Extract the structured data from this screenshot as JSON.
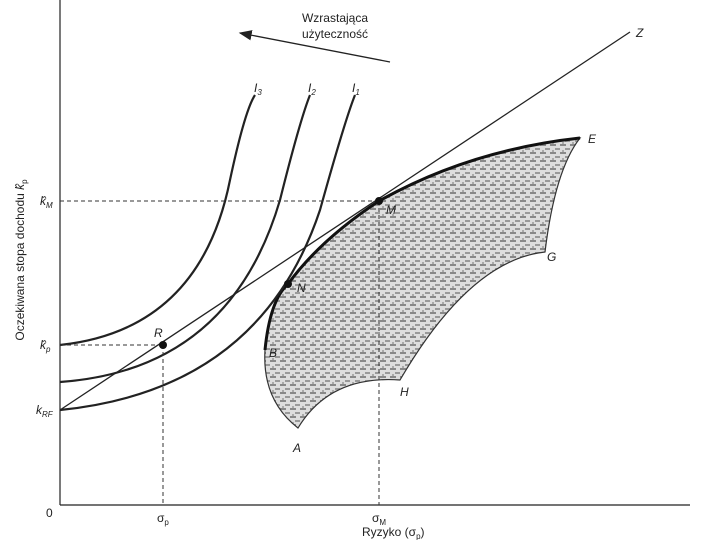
{
  "annotation": {
    "lines": [
      "Wzrastająca",
      "użyteczność"
    ]
  },
  "points": {
    "Z": "Z",
    "E": "E",
    "G": "G",
    "H": "H",
    "A": "A",
    "B": "B",
    "N": "N",
    "M": "M",
    "R": "R"
  },
  "curves": [
    {
      "main": "I",
      "sub": "3"
    },
    {
      "main": "I",
      "sub": "2"
    },
    {
      "main": "I",
      "sub": "1"
    }
  ],
  "y_axis": {
    "title": {
      "text": "Oczekiwana stopa dochodu ",
      "symbol": "k̂",
      "sub": "p"
    },
    "ticks": [
      {
        "main": "k̂",
        "sub": "M"
      },
      {
        "main": "k̂",
        "sub": "p"
      },
      {
        "main": "k",
        "sub": "RF"
      }
    ]
  },
  "x_axis": {
    "title": {
      "text": "Ryzyko (σ",
      "sub": "p",
      "end": ")"
    },
    "origin": "0",
    "ticks": [
      {
        "main": "σ",
        "sub": "p"
      },
      {
        "main": "σ",
        "sub": "M"
      }
    ]
  }
}
